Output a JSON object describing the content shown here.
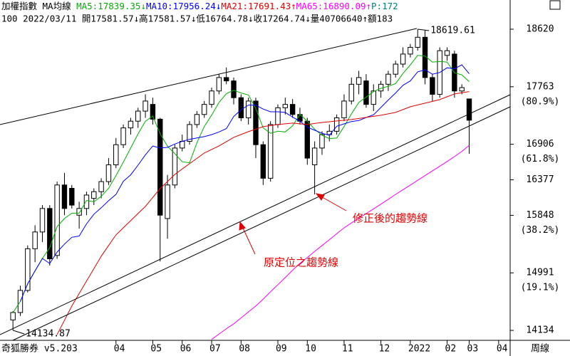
{
  "chart_data": {
    "type": "candlestick",
    "header": {
      "line1": [
        {
          "text": "加權指數 MA均線 ",
          "color": "#000000"
        },
        {
          "text": "MA5:17839.35↓",
          "color": "#00b000"
        },
        {
          "text": "MA10:17956.24↓",
          "color": "#0000ff"
        },
        {
          "text": "MA21:17691.43↑",
          "color": "#e00000"
        },
        {
          "text": "MA65:16890.09↑",
          "color": "#ff00ff"
        },
        {
          "text": "P:172",
          "color": "#008080"
        }
      ],
      "line2": "100 2022/03/11 開17581.57↓高17581.57↓低16764.78↓收17264.74↓量40706640↑額183"
    },
    "footer": {
      "left": "奇狐勝券 v5.203",
      "right": "周線"
    },
    "categories": [
      null,
      null,
      null,
      null,
      null,
      null,
      null,
      null,
      null,
      null,
      null,
      null,
      null,
      null,
      "04",
      null,
      null,
      null,
      null,
      "05",
      null,
      null,
      null,
      "06",
      null,
      null,
      null,
      "07",
      null,
      null,
      null,
      "08",
      null,
      null,
      null,
      null,
      "09",
      null,
      null,
      null,
      "10",
      null,
      null,
      null,
      null,
      "11",
      null,
      null,
      null,
      null,
      "12",
      null,
      null,
      null,
      "2022",
      null,
      null,
      null,
      null,
      "02",
      null,
      null,
      "03",
      null,
      null,
      null,
      "04"
    ],
    "open": [
      14290,
      14400,
      14730,
      15350,
      15600,
      15950,
      15250,
      16300,
      16250,
      15850,
      15950,
      16100,
      16200,
      16350,
      16600,
      16900,
      17150,
      17250,
      17400,
      17500,
      17280,
      15800,
      16300,
      16850,
      16950,
      17200,
      17350,
      17500,
      17700,
      17900,
      17850,
      17600,
      17300,
      17550,
      16900,
      16400,
      17200,
      17450,
      17500,
      17350,
      17250,
      16600,
      16850,
      17050,
      17100,
      17300,
      17550,
      17800,
      17850,
      17500,
      17700,
      17800,
      17950,
      18100,
      18250,
      18350,
      18500,
      17900,
      17650,
      18230,
      18250,
      17700,
      17581.57,
      null,
      null,
      null,
      null
    ],
    "high": [
      14420,
      14800,
      15400,
      15700,
      16000,
      16000,
      16350,
      16480,
      16300,
      16050,
      16200,
      16250,
      16400,
      16700,
      17000,
      17200,
      17300,
      17450,
      17650,
      17600,
      17300,
      16450,
      16900,
      17050,
      17250,
      17400,
      17550,
      17750,
      17950,
      18050,
      17900,
      17650,
      17600,
      17600,
      16950,
      17250,
      17500,
      17600,
      17580,
      17450,
      17300,
      16950,
      17100,
      17200,
      17350,
      17650,
      17900,
      18000,
      17950,
      17800,
      17850,
      18000,
      18150,
      18350,
      18400,
      18619.61,
      18600,
      17950,
      18350,
      18350,
      18300,
      17800,
      17581.57,
      null,
      null,
      null,
      null
    ],
    "low": [
      14134.87,
      14350,
      14700,
      15150,
      15450,
      15100,
      15200,
      15850,
      15950,
      15650,
      15850,
      16000,
      16100,
      16300,
      16550,
      16850,
      17050,
      17150,
      17300,
      17200,
      15160,
      15500,
      16250,
      16800,
      16900,
      17150,
      17300,
      17450,
      17650,
      17800,
      17500,
      17250,
      17200,
      16700,
      16300,
      16350,
      17150,
      17350,
      17300,
      17200,
      16600,
      16160,
      16750,
      16950,
      17050,
      17250,
      17500,
      17650,
      17450,
      17400,
      17600,
      17700,
      17900,
      18050,
      18200,
      18300,
      17800,
      17550,
      17600,
      18150,
      17600,
      17650,
      16764.78,
      null,
      null,
      null,
      null
    ],
    "close": [
      14400,
      14730,
      15350,
      15600,
      15950,
      15200,
      16300,
      15950,
      16000,
      15950,
      16150,
      16200,
      16350,
      16600,
      16900,
      17150,
      17250,
      17400,
      17550,
      17280,
      15850,
      16300,
      16850,
      16950,
      17200,
      17350,
      17500,
      17700,
      17900,
      17850,
      17600,
      17300,
      17550,
      16900,
      16400,
      17200,
      17450,
      17500,
      17350,
      17250,
      16700,
      16850,
      17050,
      17100,
      17300,
      17550,
      17800,
      17900,
      17500,
      17700,
      17800,
      17950,
      18100,
      18250,
      18350,
      18500,
      17900,
      17650,
      18300,
      18300,
      17700,
      17750,
      17264.74,
      null,
      null,
      null,
      null
    ],
    "up_color": "#ffffff",
    "down_color": "#000000",
    "series": [
      {
        "name": "MA5",
        "color": "#00b000",
        "values": [
          14400,
          14565,
          14827,
          15020,
          15206,
          15366,
          15680,
          15800,
          15880,
          15880,
          16070,
          16050,
          16130,
          16250,
          16440,
          16640,
          16850,
          17060,
          17250,
          17326,
          17066,
          16876,
          16766,
          16646,
          16630,
          16930,
          17170,
          17340,
          17530,
          17660,
          17710,
          17670,
          17640,
          17440,
          17150,
          17070,
          17100,
          17090,
          17180,
          17350,
          17250,
          17130,
          17040,
          16990,
          17000,
          17170,
          17360,
          17530,
          17610,
          17690,
          17740,
          17770,
          17810,
          17960,
          18090,
          18230,
          18220,
          18130,
          18140,
          18130,
          17970,
          17940,
          17839.35,
          null,
          null,
          null,
          null
        ]
      },
      {
        "name": "MA10",
        "color": "#0000ff",
        "values": [
          null,
          14565,
          14827,
          15020,
          15206,
          15130,
          15300,
          15420,
          15520,
          15540,
          15720,
          15865,
          15960,
          16065,
          16160,
          16355,
          16450,
          16595,
          16750,
          16880,
          16850,
          16860,
          16910,
          16950,
          16980,
          17000,
          17020,
          17050,
          17090,
          17140,
          17320,
          17420,
          17490,
          17490,
          17430,
          17390,
          17390,
          17380,
          17310,
          17250,
          17160,
          17115,
          17070,
          17040,
          17175,
          17210,
          17245,
          17260,
          17305,
          17345,
          17455,
          17565,
          17670,
          17785,
          17850,
          17985,
          18015,
          17950,
          17975,
          18045,
          18030,
          18090,
          17956.24,
          null,
          null,
          null,
          null
        ]
      },
      {
        "name": "MA21",
        "color": "#e00000",
        "values": [
          null,
          null,
          null,
          null,
          null,
          null,
          14073,
          14285,
          14497,
          14683,
          14868,
          15054,
          15239,
          15398,
          15556,
          15663,
          15769,
          15875,
          15981,
          16114,
          16246,
          16352,
          16458,
          16538,
          16617,
          16697,
          16776,
          16829,
          16882,
          16946,
          17009,
          17052,
          17094,
          17131,
          17168,
          17184,
          17200,
          17211,
          17221,
          17211,
          17200,
          17216,
          17231,
          17242,
          17253,
          17264,
          17274,
          17290,
          17306,
          17322,
          17338,
          17359,
          17380,
          17423,
          17465,
          17492,
          17518,
          17545,
          17571,
          17614,
          17656,
          17674,
          17691.43,
          null,
          null,
          null,
          null
        ]
      },
      {
        "name": "MA65",
        "color": "#ff00ff",
        "values": [
          null,
          null,
          null,
          null,
          null,
          null,
          null,
          null,
          null,
          null,
          null,
          null,
          null,
          null,
          null,
          null,
          null,
          null,
          null,
          null,
          null,
          null,
          null,
          null,
          null,
          null,
          null,
          14000,
          14080,
          14160,
          14232,
          14320,
          14410,
          14497,
          14600,
          14710,
          14815,
          14920,
          15030,
          15133,
          15220,
          15310,
          15398,
          15485,
          15575,
          15663,
          15735,
          15805,
          15875,
          15945,
          16015,
          16087,
          16160,
          16230,
          16299,
          16370,
          16440,
          16511,
          16580,
          16650,
          16723,
          16800,
          16890.09,
          null,
          null,
          null,
          null
        ]
      }
    ],
    "ylim": [
      13986,
      18864
    ],
    "yticks": [
      18620,
      17763,
      16906,
      16377,
      15848,
      14991,
      14134
    ],
    "yticks_ratio": [
      {
        "value": 17763,
        "label": "(80.9%)"
      },
      {
        "value": 16906,
        "label": "(61.8%)"
      },
      {
        "value": 15848,
        "label": "(38.2%)"
      },
      {
        "value": 14991,
        "label": "(19.1%)"
      }
    ],
    "extremes": [
      {
        "value": 18619.61,
        "label": "18619.61"
      },
      {
        "value": 14134.87,
        "label": "14134.87"
      }
    ],
    "annotations": [
      "修正後的趨勢線",
      "原定位之趨勢線"
    ]
  }
}
